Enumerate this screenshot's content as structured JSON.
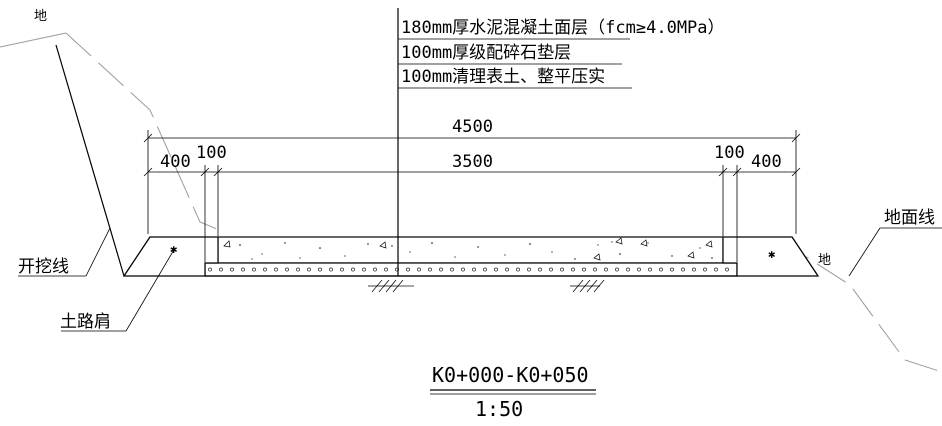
{
  "layers": {
    "line1": "180mm厚水泥混凝土面层（fcm≥4.0MPa）",
    "line2": "100mm厚级配碎石垫层",
    "line3": "100mm清理表土、整平压实"
  },
  "dimensions": {
    "total": "4500",
    "left_shoulder": "400",
    "left_edge": "100",
    "pavement": "3500",
    "right_edge": "100",
    "right_shoulder": "400"
  },
  "labels": {
    "excavation_line": "开挖线",
    "ground_line": "地面线",
    "earth_shoulder": "土路肩",
    "ground_mark_left": "地",
    "ground_mark_right": "地"
  },
  "title": {
    "station": "K0+000-K0+050",
    "scale": "1:50"
  },
  "symbols": {
    "asterisk": "✱"
  }
}
